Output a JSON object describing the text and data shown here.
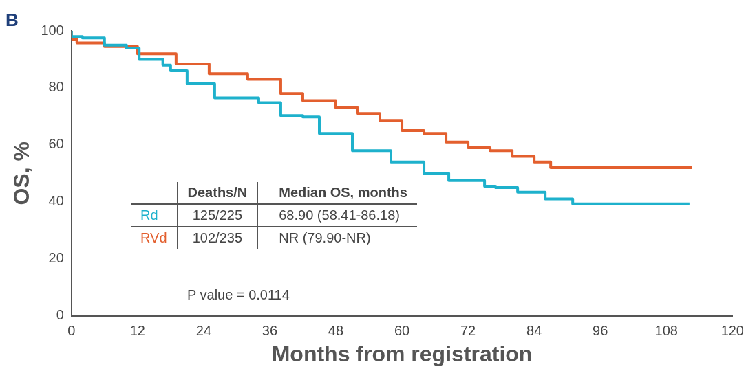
{
  "chart_data": {
    "type": "step",
    "xlabel": "Months from registration",
    "ylabel": "OS, %",
    "xlim": [
      0,
      120
    ],
    "xticks": [
      0,
      12,
      24,
      36,
      48,
      60,
      72,
      84,
      96,
      108,
      120
    ],
    "ylim": [
      0,
      100
    ],
    "yticks": [
      0,
      20,
      40,
      60,
      80,
      100
    ],
    "grid": false,
    "legend": "bottom left",
    "marker": "none",
    "line_style": "solid",
    "series": [
      {
        "name": "Rd",
        "color": "#1eb1cc",
        "x": [
          0,
          2,
          6,
          10,
          12.3,
          16.6,
          18,
          21,
          26,
          34,
          38,
          42,
          45,
          51,
          58,
          64,
          68.5,
          75,
          77,
          81,
          86,
          91,
          98,
          112.2
        ],
        "values": [
          100,
          98,
          97.5,
          95,
          94,
          90,
          88,
          86,
          81.4,
          76.5,
          74.8,
          70.3,
          69.8,
          64,
          58,
          54,
          50,
          47.5,
          45.5,
          45,
          43.4,
          41,
          39.3,
          39.3
        ]
      },
      {
        "name": "RVd",
        "color": "#e35f2e",
        "x": [
          0,
          1,
          6,
          12,
          19,
          25,
          32,
          38,
          42,
          48,
          52,
          56,
          60,
          64,
          68,
          72,
          76,
          80,
          84,
          87,
          89,
          112.6
        ],
        "values": [
          100,
          97,
          95.8,
          94.5,
          92,
          88.4,
          85,
          83,
          78,
          75.5,
          73,
          71,
          68.6,
          65,
          64,
          61,
          59,
          58,
          56,
          54,
          52,
          52
        ]
      }
    ],
    "annotations": [
      "B",
      "Deaths/N",
      "Median OS, months",
      "125/225",
      "68.90 (58.41-86.18)",
      "102/235",
      "NR (79.90-NR)",
      "P value = 0.0114"
    ]
  }
}
